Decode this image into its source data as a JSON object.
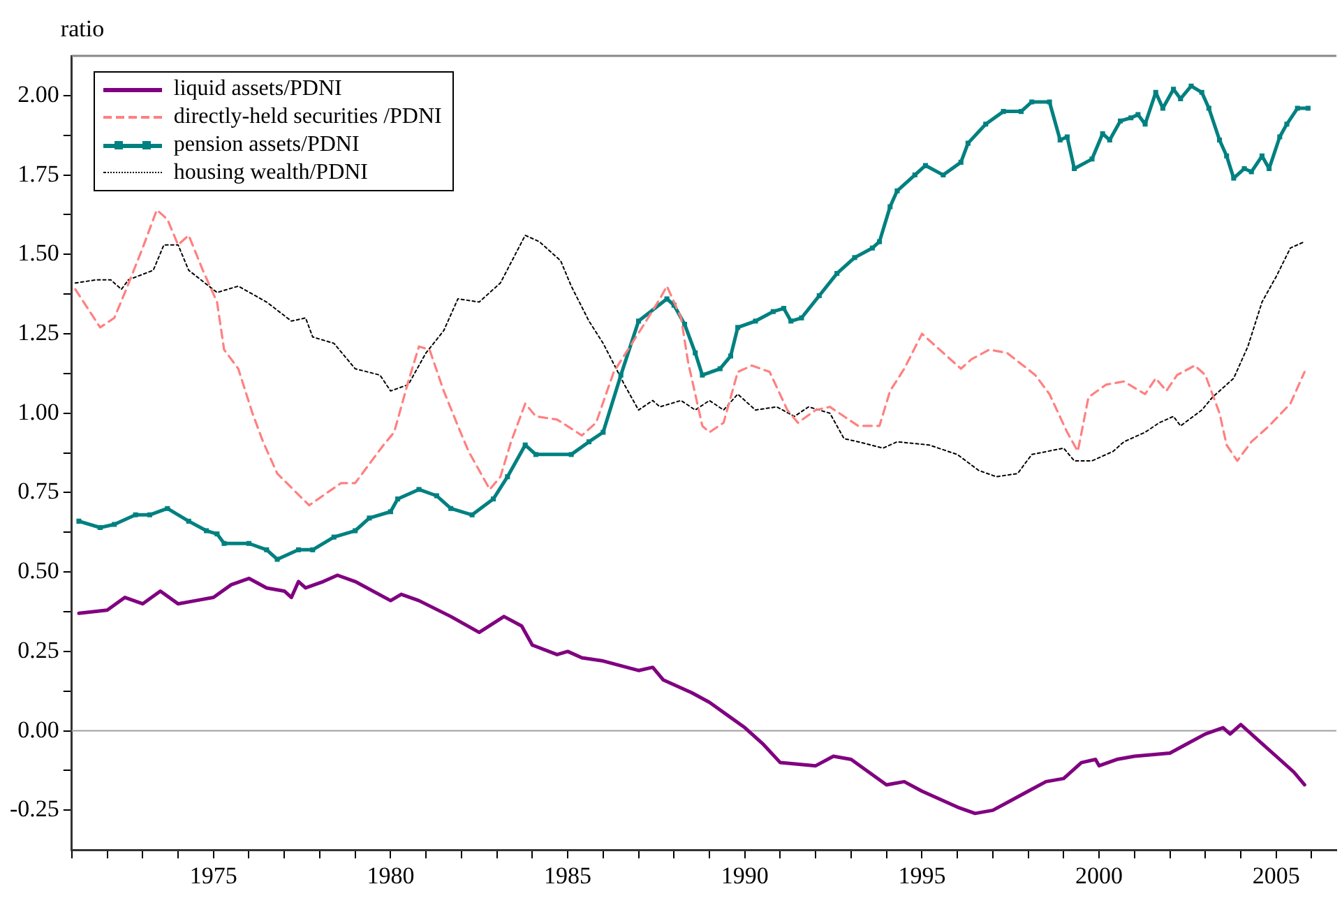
{
  "chart_data": {
    "type": "line",
    "ylabel": "ratio",
    "xlim": [
      1971,
      2006.7
    ],
    "ylim": [
      -0.375,
      2.125
    ],
    "xticks": [
      {
        "value": 1971,
        "label": null
      },
      {
        "value": 1972,
        "label": null
      },
      {
        "value": 1973,
        "label": null
      },
      {
        "value": 1974,
        "label": null
      },
      1975,
      {
        "value": 1976,
        "label": null
      },
      {
        "value": 1977,
        "label": null
      },
      {
        "value": 1978,
        "label": null
      },
      {
        "value": 1979,
        "label": null
      },
      1980,
      {
        "value": 1981,
        "label": null
      },
      {
        "value": 1982,
        "label": null
      },
      {
        "value": 1983,
        "label": null
      },
      {
        "value": 1984,
        "label": null
      },
      1985,
      {
        "value": 1986,
        "label": null
      },
      {
        "value": 1987,
        "label": null
      },
      {
        "value": 1988,
        "label": null
      },
      {
        "value": 1989,
        "label": null
      },
      1990,
      {
        "value": 1991,
        "label": null
      },
      {
        "value": 1992,
        "label": null
      },
      {
        "value": 1993,
        "label": null
      },
      {
        "value": 1994,
        "label": null
      },
      1995,
      {
        "value": 1996,
        "label": null
      },
      {
        "value": 1997,
        "label": null
      },
      {
        "value": 1998,
        "label": null
      },
      {
        "value": 1999,
        "label": null
      },
      2000,
      {
        "value": 2001,
        "label": null
      },
      {
        "value": 2002,
        "label": null
      },
      {
        "value": 2003,
        "label": null
      },
      {
        "value": 2004,
        "label": null
      },
      2005,
      {
        "value": 2006,
        "label": null
      }
    ],
    "yticks": [
      {
        "value": -0.25,
        "label": "-0.25"
      },
      {
        "value": -0.125,
        "label": null
      },
      {
        "value": 0,
        "label": "0.00"
      },
      {
        "value": 0.125,
        "label": null
      },
      {
        "value": 0.25,
        "label": "0.25"
      },
      {
        "value": 0.375,
        "label": null
      },
      {
        "value": 0.5,
        "label": "0.50"
      },
      {
        "value": 0.625,
        "label": null
      },
      {
        "value": 0.75,
        "label": "0.75"
      },
      {
        "value": 0.875,
        "label": null
      },
      {
        "value": 1,
        "label": "1.00"
      },
      {
        "value": 1.125,
        "label": null
      },
      {
        "value": 1.25,
        "label": "1.25"
      },
      {
        "value": 1.375,
        "label": null
      },
      {
        "value": 1.5,
        "label": "1.50"
      },
      {
        "value": 1.625,
        "label": null
      },
      {
        "value": 1.75,
        "label": "1.75"
      },
      {
        "value": 1.875,
        "label": null
      },
      {
        "value": 2,
        "label": "2.00"
      }
    ],
    "grid": false,
    "legend": "top left",
    "ref_lines": [
      {
        "axis": "y",
        "value": 0,
        "color": "#a0a0a0"
      }
    ],
    "series": [
      {
        "name": "liquid assets/PDNI",
        "color": "#800080",
        "line_style": "solid",
        "marker": "none",
        "x": [
          1971.2,
          1972.0,
          1972.5,
          1973.0,
          1973.5,
          1974.0,
          1974.5,
          1975.0,
          1975.5,
          1976.0,
          1976.5,
          1977.0,
          1977.2,
          1977.4,
          1977.6,
          1978.1,
          1978.5,
          1979.0,
          1980.0,
          1980.3,
          1980.8,
          1981.7,
          1982.5,
          1983.2,
          1983.7,
          1984.0,
          1984.7,
          1985.0,
          1985.4,
          1986.0,
          1987.0,
          1987.4,
          1987.7,
          1988.5,
          1989.0,
          1989.5,
          1990.0,
          1990.5,
          1991.0,
          1992.0,
          1992.5,
          1993.0,
          1993.5,
          1994.0,
          1994.5,
          1995.0,
          1996.0,
          1996.5,
          1997.0,
          1997.5,
          1998.0,
          1998.5,
          1999.0,
          1999.5,
          1999.9,
          2000.0,
          2000.5,
          2001.0,
          2002.0,
          2002.5,
          2003.0,
          2003.5,
          2003.7,
          2004.0,
          2004.5,
          2005.0,
          2005.5,
          2005.8
        ],
        "values": [
          0.37,
          0.38,
          0.42,
          0.4,
          0.44,
          0.4,
          0.41,
          0.42,
          0.46,
          0.48,
          0.45,
          0.44,
          0.42,
          0.47,
          0.45,
          0.47,
          0.49,
          0.47,
          0.41,
          0.43,
          0.41,
          0.36,
          0.31,
          0.36,
          0.33,
          0.27,
          0.24,
          0.25,
          0.23,
          0.22,
          0.19,
          0.2,
          0.16,
          0.12,
          0.09,
          0.05,
          0.01,
          -0.04,
          -0.1,
          -0.11,
          -0.08,
          -0.09,
          -0.13,
          -0.17,
          -0.16,
          -0.19,
          -0.24,
          -0.26,
          -0.25,
          -0.22,
          -0.19,
          -0.16,
          -0.15,
          -0.1,
          -0.09,
          -0.11,
          -0.09,
          -0.08,
          -0.07,
          -0.04,
          -0.01,
          0.01,
          -0.01,
          0.02,
          -0.03,
          -0.08,
          -0.13,
          -0.17
        ]
      },
      {
        "name": "directly-held securities /PDNI",
        "color": "#ff8080",
        "line_style": "dashed",
        "marker": "none",
        "x": [
          1971.1,
          1971.8,
          1972.2,
          1972.5,
          1973.0,
          1973.4,
          1973.7,
          1974.0,
          1974.3,
          1974.7,
          1975.1,
          1975.3,
          1975.7,
          1976.1,
          1976.4,
          1976.8,
          1977.7,
          1978.6,
          1979.0,
          1979.4,
          1979.8,
          1980.1,
          1980.5,
          1980.8,
          1981.1,
          1981.5,
          1981.9,
          1982.2,
          1982.8,
          1983.1,
          1983.4,
          1983.8,
          1984.1,
          1984.7,
          1985.4,
          1985.8,
          1986.3,
          1987.1,
          1987.6,
          1987.8,
          1988.2,
          1988.4,
          1988.8,
          1989.0,
          1989.4,
          1989.8,
          1990.2,
          1990.7,
          1991.2,
          1991.5,
          1992.0,
          1992.4,
          1992.8,
          1993.2,
          1993.8,
          1994.1,
          1994.5,
          1995.0,
          1995.6,
          1996.1,
          1996.4,
          1996.9,
          1997.4,
          1998.2,
          1998.6,
          1999.1,
          1999.4,
          1999.7,
          2000.2,
          2000.7,
          2001.3,
          2001.6,
          2001.9,
          2002.2,
          2002.7,
          2003.0,
          2003.4,
          2003.6,
          2003.9,
          2004.3,
          2004.8,
          2005.4,
          2005.8
        ],
        "values": [
          1.39,
          1.27,
          1.3,
          1.38,
          1.52,
          1.64,
          1.61,
          1.53,
          1.56,
          1.45,
          1.35,
          1.2,
          1.14,
          1.0,
          0.91,
          0.81,
          0.71,
          0.78,
          0.78,
          0.84,
          0.9,
          0.94,
          1.1,
          1.21,
          1.2,
          1.07,
          0.96,
          0.88,
          0.76,
          0.8,
          0.91,
          1.03,
          0.99,
          0.98,
          0.93,
          0.97,
          1.13,
          1.27,
          1.36,
          1.4,
          1.3,
          1.16,
          0.96,
          0.94,
          0.97,
          1.13,
          1.15,
          1.13,
          1.01,
          0.97,
          1.01,
          1.02,
          0.99,
          0.96,
          0.96,
          1.07,
          1.14,
          1.25,
          1.19,
          1.14,
          1.17,
          1.2,
          1.19,
          1.12,
          1.06,
          0.94,
          0.88,
          1.05,
          1.09,
          1.1,
          1.06,
          1.11,
          1.07,
          1.12,
          1.15,
          1.12,
          1.0,
          0.9,
          0.85,
          0.91,
          0.96,
          1.03,
          1.13
        ]
      },
      {
        "name": "pension assets/PDNI",
        "color": "#008080",
        "line_style": "solid",
        "marker": "square",
        "x": [
          1971.2,
          1971.8,
          1972.2,
          1972.8,
          1973.2,
          1973.7,
          1974.3,
          1974.8,
          1975.1,
          1975.3,
          1976.0,
          1976.5,
          1976.8,
          1977.4,
          1977.8,
          1978.4,
          1979.0,
          1979.4,
          1980.0,
          1980.2,
          1980.8,
          1981.3,
          1981.7,
          1982.3,
          1982.9,
          1983.3,
          1983.8,
          1984.1,
          1985.1,
          1985.6,
          1986.0,
          1986.5,
          1987.0,
          1987.8,
          1988.0,
          1988.3,
          1988.6,
          1988.8,
          1989.3,
          1989.6,
          1989.8,
          1990.3,
          1990.8,
          1991.1,
          1991.3,
          1991.6,
          1992.1,
          1992.6,
          1993.1,
          1993.6,
          1993.8,
          1994.1,
          1994.3,
          1994.8,
          1995.1,
          1995.6,
          1996.1,
          1996.3,
          1996.8,
          1997.3,
          1997.8,
          1998.1,
          1998.6,
          1998.9,
          1999.1,
          1999.3,
          1999.8,
          2000.1,
          2000.3,
          2000.6,
          2000.9,
          2001.1,
          2001.3,
          2001.6,
          2001.8,
          2002.1,
          2002.3,
          2002.6,
          2002.9,
          2003.1,
          2003.4,
          2003.6,
          2003.8,
          2004.1,
          2004.3,
          2004.6,
          2004.8,
          2005.1,
          2005.3,
          2005.6,
          2005.9
        ],
        "values": [
          0.66,
          0.64,
          0.65,
          0.68,
          0.68,
          0.7,
          0.66,
          0.63,
          0.62,
          0.59,
          0.59,
          0.57,
          0.54,
          0.57,
          0.57,
          0.61,
          0.63,
          0.67,
          0.69,
          0.73,
          0.76,
          0.74,
          0.7,
          0.68,
          0.73,
          0.8,
          0.9,
          0.87,
          0.87,
          0.91,
          0.94,
          1.12,
          1.29,
          1.36,
          1.34,
          1.28,
          1.19,
          1.12,
          1.14,
          1.18,
          1.27,
          1.29,
          1.32,
          1.33,
          1.29,
          1.3,
          1.37,
          1.44,
          1.49,
          1.52,
          1.54,
          1.65,
          1.7,
          1.75,
          1.78,
          1.75,
          1.79,
          1.85,
          1.91,
          1.95,
          1.95,
          1.98,
          1.98,
          1.86,
          1.87,
          1.77,
          1.8,
          1.88,
          1.86,
          1.92,
          1.93,
          1.94,
          1.91,
          2.01,
          1.96,
          2.02,
          1.99,
          2.03,
          2.01,
          1.96,
          1.86,
          1.81,
          1.74,
          1.77,
          1.76,
          1.81,
          1.77,
          1.87,
          1.91,
          1.96,
          1.96
        ]
      },
      {
        "name": "housing wealth/PDNI",
        "color": "#000000",
        "line_style": "dotted",
        "marker": "none",
        "x": [
          1971.1,
          1971.7,
          1972.1,
          1972.4,
          1972.6,
          1973.3,
          1973.6,
          1974.0,
          1974.3,
          1975.1,
          1975.7,
          1976.5,
          1977.2,
          1977.6,
          1977.8,
          1978.4,
          1979.0,
          1979.7,
          1980.0,
          1980.5,
          1981.0,
          1981.5,
          1981.9,
          1982.5,
          1983.1,
          1983.8,
          1984.2,
          1984.8,
          1985.1,
          1985.6,
          1986.0,
          1986.6,
          1987.0,
          1987.4,
          1987.6,
          1988.2,
          1988.6,
          1989.0,
          1989.4,
          1989.8,
          1990.3,
          1990.9,
          1991.4,
          1991.8,
          1992.4,
          1992.8,
          1993.2,
          1993.9,
          1994.3,
          1995.2,
          1996.0,
          1996.6,
          1997.1,
          1997.7,
          1998.1,
          1999.0,
          1999.3,
          1999.8,
          2000.4,
          2000.7,
          2001.3,
          2001.7,
          2002.1,
          2002.3,
          2002.9,
          2003.2,
          2003.8,
          2004.2,
          2004.6,
          2005.0,
          2005.4,
          2005.8
        ],
        "values": [
          1.41,
          1.42,
          1.42,
          1.39,
          1.42,
          1.45,
          1.53,
          1.53,
          1.45,
          1.38,
          1.4,
          1.35,
          1.29,
          1.3,
          1.24,
          1.22,
          1.14,
          1.12,
          1.07,
          1.09,
          1.19,
          1.26,
          1.36,
          1.35,
          1.41,
          1.56,
          1.54,
          1.48,
          1.4,
          1.29,
          1.22,
          1.09,
          1.01,
          1.04,
          1.02,
          1.04,
          1.01,
          1.04,
          1.01,
          1.06,
          1.01,
          1.02,
          0.99,
          1.02,
          1.0,
          0.92,
          0.91,
          0.89,
          0.91,
          0.9,
          0.87,
          0.82,
          0.8,
          0.81,
          0.87,
          0.89,
          0.85,
          0.85,
          0.88,
          0.91,
          0.94,
          0.97,
          0.99,
          0.96,
          1.01,
          1.05,
          1.11,
          1.21,
          1.35,
          1.43,
          1.52,
          1.54
        ]
      }
    ]
  }
}
